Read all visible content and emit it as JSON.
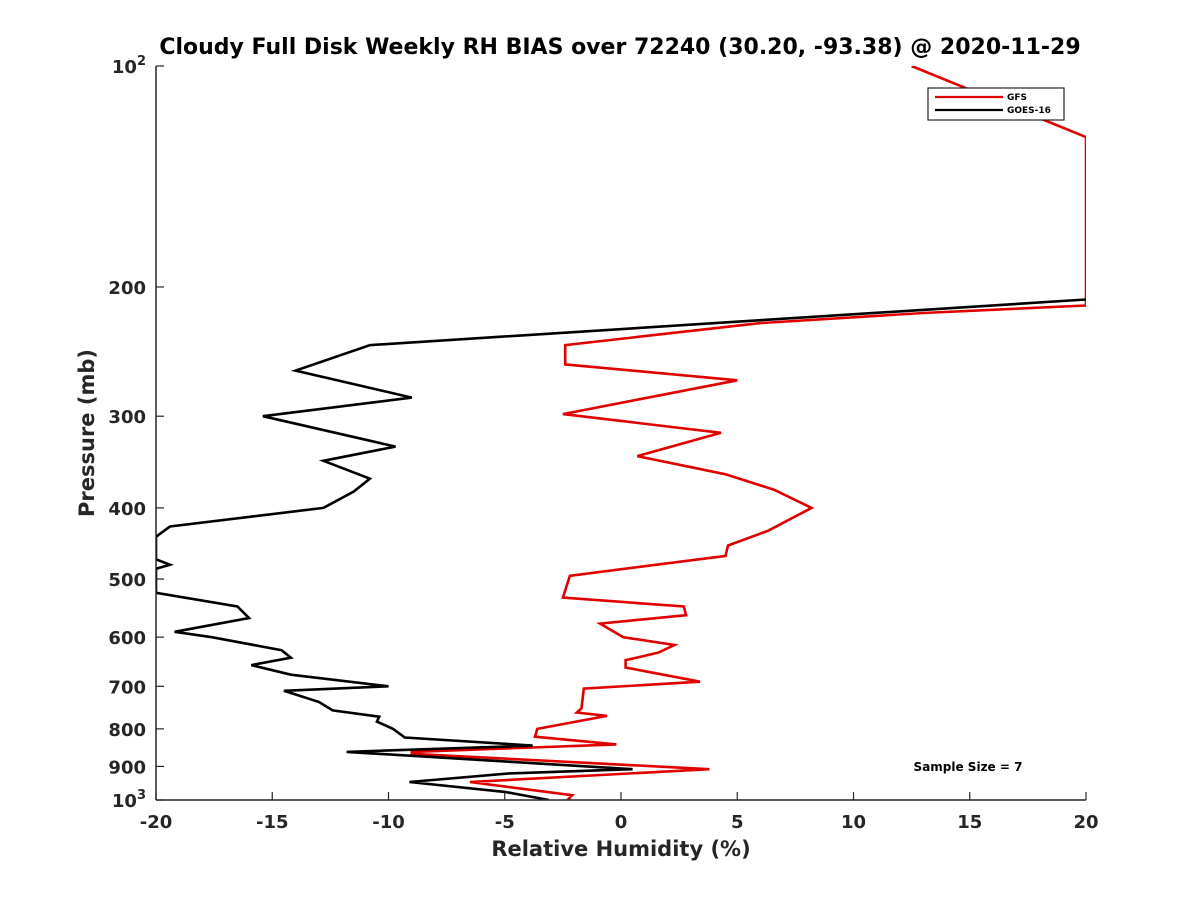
{
  "chart_data": {
    "type": "line",
    "title": "Cloudy Full Disk Weekly RH BIAS over 72240 (30.20, -93.38) @ 2020-11-29",
    "xlabel": "Relative Humidity (%)",
    "ylabel": "Pressure (mb)",
    "xlim": [
      -20,
      20
    ],
    "ylim": [
      100,
      1000
    ],
    "yscale": "log",
    "y_reversed": true,
    "grid": false,
    "legend_position": "top-right",
    "x_ticks": [
      -20,
      -15,
      -10,
      -5,
      0,
      5,
      10,
      15,
      20
    ],
    "x_tick_labels": [
      "-20",
      "-15",
      "-10",
      "-5",
      "0",
      "5",
      "10",
      "15",
      "20"
    ],
    "y_ticks": [
      {
        "value": 100,
        "base": "10",
        "exp": "2"
      },
      {
        "value": 200,
        "label": "200"
      },
      {
        "value": 300,
        "label": "300"
      },
      {
        "value": 400,
        "label": "400"
      },
      {
        "value": 500,
        "label": "500"
      },
      {
        "value": 600,
        "label": "600"
      },
      {
        "value": 700,
        "label": "700"
      },
      {
        "value": 800,
        "label": "800"
      },
      {
        "value": 900,
        "label": "900"
      },
      {
        "value": 1000,
        "base": "10",
        "exp": "3"
      }
    ],
    "annotation": "Sample Size = 7",
    "series": [
      {
        "name": "GFS",
        "color": "#e00000",
        "points": [
          [
            12.5,
            100
          ],
          [
            20,
            125
          ],
          [
            20,
            212
          ],
          [
            13,
            217
          ],
          [
            6,
            224
          ],
          [
            -2.4,
            240
          ],
          [
            -2.4,
            255
          ],
          [
            5,
            268
          ],
          [
            -2.5,
            298
          ],
          [
            4.3,
            316
          ],
          [
            0.7,
            340
          ],
          [
            4.5,
            360
          ],
          [
            6.6,
            378
          ],
          [
            8.2,
            400
          ],
          [
            6.3,
            430
          ],
          [
            4.6,
            450
          ],
          [
            4.5,
            465
          ],
          [
            -2.2,
            495
          ],
          [
            -2.5,
            530
          ],
          [
            2.7,
            545
          ],
          [
            2.8,
            560
          ],
          [
            -0.9,
            575
          ],
          [
            0.1,
            600
          ],
          [
            2.3,
            615
          ],
          [
            1.6,
            630
          ],
          [
            0.2,
            645
          ],
          [
            0.2,
            660
          ],
          [
            3.4,
            690
          ],
          [
            -1.6,
            705
          ],
          [
            -1.7,
            750
          ],
          [
            -1.9,
            760
          ],
          [
            -0.6,
            768
          ],
          [
            -3.6,
            800
          ],
          [
            -3.7,
            820
          ],
          [
            -0.2,
            840
          ],
          [
            -9,
            860
          ],
          [
            -9,
            865
          ],
          [
            3.8,
            908
          ],
          [
            -6.5,
            945
          ],
          [
            -2.1,
            985
          ],
          [
            -2.3,
            1000
          ]
        ]
      },
      {
        "name": "GOES-16",
        "color": "#000000",
        "points": [
          [
            20,
            208
          ],
          [
            6,
            222
          ],
          [
            -10.8,
            240
          ],
          [
            -14,
            260
          ],
          [
            -9,
            283
          ],
          [
            -15.4,
            300
          ],
          [
            -9.7,
            330
          ],
          [
            -12.8,
            345
          ],
          [
            -10.8,
            365
          ],
          [
            -11.5,
            380
          ],
          [
            -12.8,
            400
          ],
          [
            -19.4,
            424
          ],
          [
            -20,
            438
          ],
          [
            -20,
            470
          ],
          [
            -19.4,
            478
          ],
          [
            -20,
            484
          ],
          [
            -20,
            522
          ],
          [
            -16.5,
            545
          ],
          [
            -16,
            565
          ],
          [
            -19.2,
            590
          ],
          [
            -17.6,
            600
          ],
          [
            -14.6,
            625
          ],
          [
            -14.2,
            640
          ],
          [
            -15.9,
            655
          ],
          [
            -14.2,
            675
          ],
          [
            -10,
            700
          ],
          [
            -14.5,
            710
          ],
          [
            -13,
            735
          ],
          [
            -12.4,
            755
          ],
          [
            -10.4,
            770
          ],
          [
            -10.5,
            782
          ],
          [
            -9.8,
            800
          ],
          [
            -9.3,
            822
          ],
          [
            -3.8,
            843
          ],
          [
            -11.8,
            860
          ],
          [
            0.5,
            908
          ],
          [
            -4.8,
            920
          ],
          [
            -9.1,
            945
          ],
          [
            -5,
            975
          ],
          [
            -3.1,
            1000
          ]
        ]
      }
    ]
  }
}
